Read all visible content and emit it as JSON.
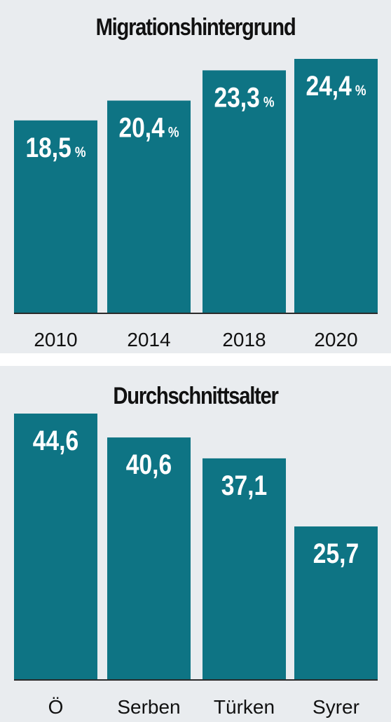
{
  "colors": {
    "bar": "#0e7484",
    "panel_bg": "#e9ecef",
    "text": "#111111",
    "label": "#ffffff"
  },
  "chart_data": [
    {
      "type": "bar",
      "title": "Migrationshintergrund",
      "categories": [
        "2010",
        "2014",
        "2018",
        "2020"
      ],
      "values": [
        18.5,
        20.4,
        23.3,
        24.4
      ],
      "value_labels": [
        "18,5",
        "20,4",
        "23,3",
        "24,4"
      ],
      "unit": "%",
      "ylim": [
        0,
        24.4
      ],
      "grid": false,
      "legend": "none"
    },
    {
      "type": "bar",
      "title": "Durchschnittsalter",
      "categories": [
        "Ö",
        "Serben",
        "Türken",
        "Syrer"
      ],
      "values": [
        44.6,
        40.6,
        37.1,
        25.7
      ],
      "value_labels": [
        "44,6",
        "40,6",
        "37,1",
        "25,7"
      ],
      "unit": "",
      "ylim": [
        0,
        44.6
      ],
      "grid": false,
      "legend": "none"
    }
  ]
}
